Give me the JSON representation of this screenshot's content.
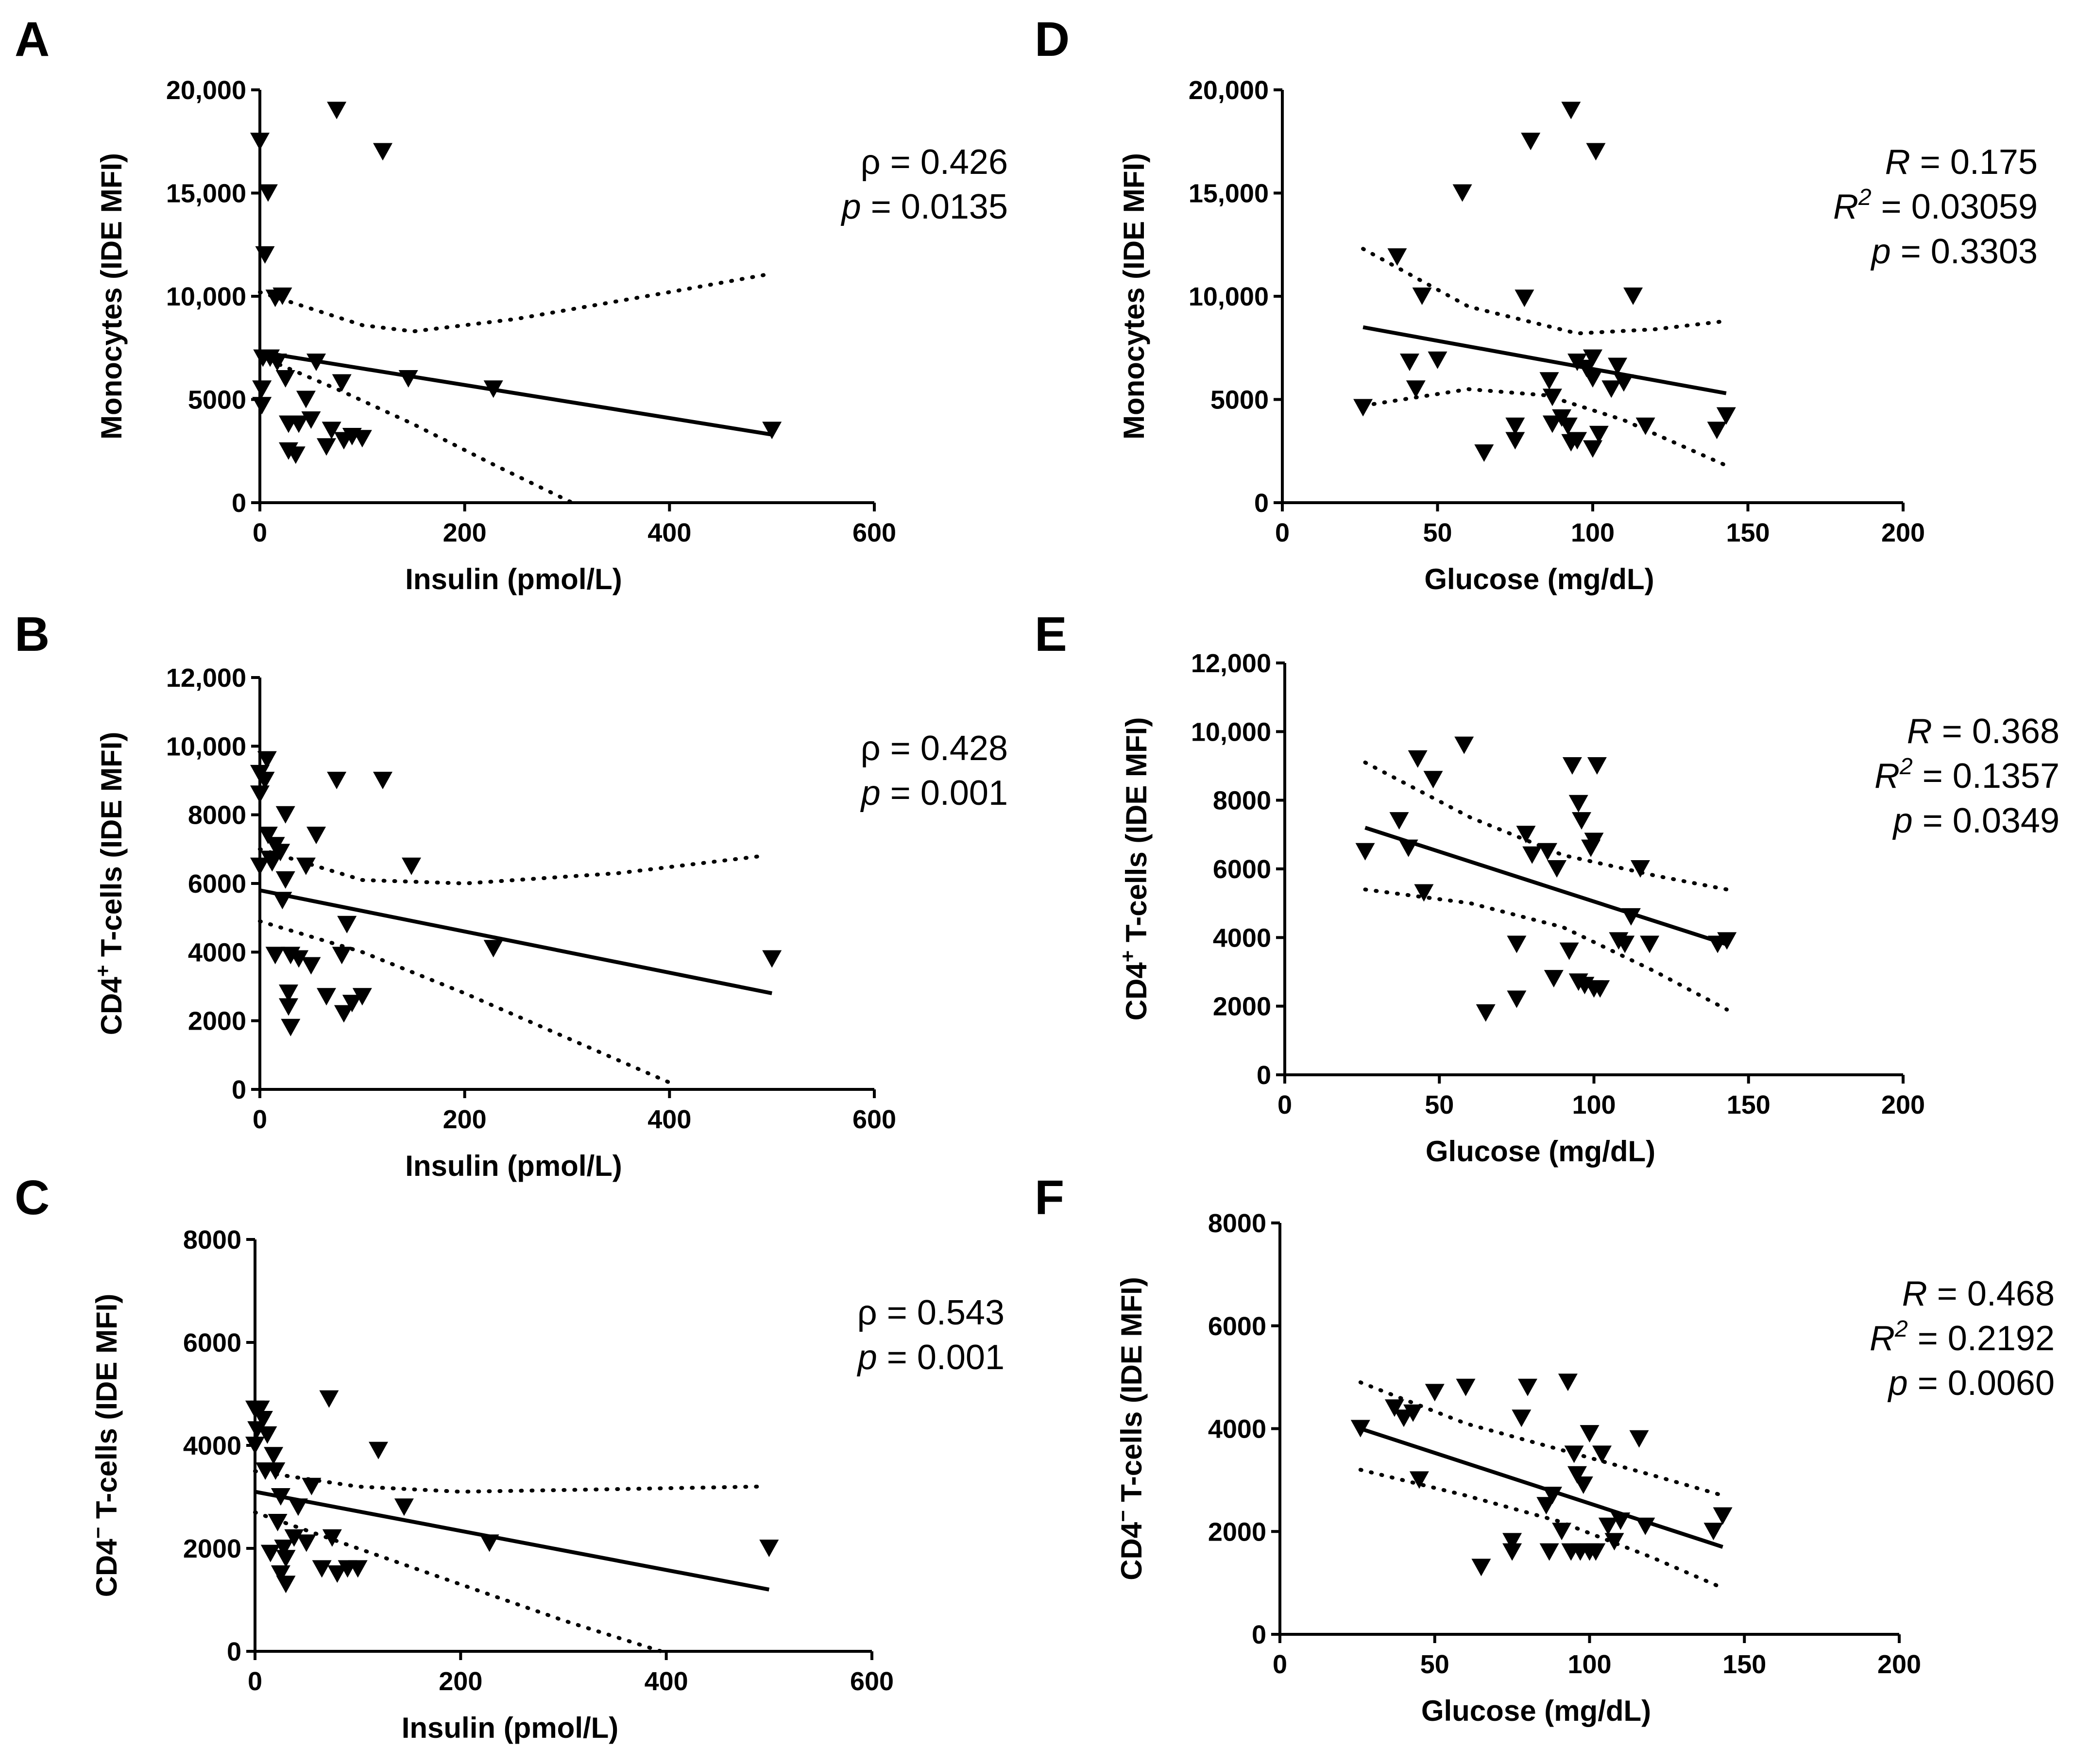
{
  "chart_data": [
    {
      "type": "scatter",
      "panel": "A",
      "xlabel": "Insulin (pmol/L)",
      "ylabel": "Monocytes (IDE MFI)",
      "xlim": [
        0,
        600
      ],
      "ylim": [
        0,
        20000
      ],
      "x_ticks": [
        0,
        200,
        400,
        600
      ],
      "x_tick_labels": [
        "0",
        "200",
        "400",
        "600"
      ],
      "y_ticks": [
        0,
        5000,
        10000,
        15000,
        20000
      ],
      "y_tick_labels": [
        "0",
        "5000",
        "10,000",
        "15,000",
        "20,000"
      ],
      "stats": [
        {
          "sym": "ρ",
          "rest": " = 0.426"
        },
        {
          "sym": "p",
          "rest": " = 0.0135"
        }
      ],
      "points": [
        [
          0,
          17500
        ],
        [
          2,
          4700
        ],
        [
          2,
          5500
        ],
        [
          3,
          7000
        ],
        [
          5,
          12000
        ],
        [
          8,
          15000
        ],
        [
          10,
          7000
        ],
        [
          15,
          9900
        ],
        [
          17,
          6800
        ],
        [
          22,
          10000
        ],
        [
          25,
          6000
        ],
        [
          28,
          3800
        ],
        [
          28,
          2500
        ],
        [
          35,
          2300
        ],
        [
          38,
          3800
        ],
        [
          45,
          5000
        ],
        [
          50,
          4000
        ],
        [
          55,
          6800
        ],
        [
          65,
          2700
        ],
        [
          70,
          3500
        ],
        [
          80,
          5800
        ],
        [
          82,
          3000
        ],
        [
          90,
          3200
        ],
        [
          100,
          3100
        ],
        [
          75,
          19000
        ],
        [
          120,
          17000
        ],
        [
          145,
          6000
        ],
        [
          228,
          5500
        ],
        [
          500,
          3500
        ]
      ],
      "fit": {
        "x1": 0,
        "y1": 7300,
        "x2": 500,
        "y2": 3300
      },
      "ci_upper": [
        [
          0,
          10200
        ],
        [
          100,
          8600
        ],
        [
          150,
          8300
        ],
        [
          250,
          8900
        ],
        [
          400,
          10200
        ],
        [
          500,
          11100
        ]
      ],
      "ci_lower": [
        [
          0,
          7100
        ],
        [
          80,
          5400
        ],
        [
          150,
          3800
        ],
        [
          230,
          1800
        ],
        [
          305,
          0
        ]
      ]
    },
    {
      "type": "scatter",
      "panel": "B",
      "xlabel": "Insulin (pmol/L)",
      "ylabel": "CD4+ T-cells (IDE MFI)",
      "ylabel_parts": {
        "pre": "CD4",
        "sup": "+",
        "post": " T-cells (IDE MFI)"
      },
      "xlim": [
        0,
        600
      ],
      "ylim": [
        0,
        12000
      ],
      "x_ticks": [
        0,
        200,
        400,
        600
      ],
      "x_tick_labels": [
        "0",
        "200",
        "400",
        "600"
      ],
      "y_ticks": [
        0,
        2000,
        4000,
        6000,
        8000,
        10000,
        12000
      ],
      "y_tick_labels": [
        "0",
        "2000",
        "4000",
        "6000",
        "8000",
        "10,000",
        "12,000"
      ],
      "stats": [
        {
          "sym": "ρ",
          "rest": " = 0.428"
        },
        {
          "sym": "p",
          "rest": " = 0.001"
        }
      ],
      "points": [
        [
          0,
          6500
        ],
        [
          0,
          8600
        ],
        [
          0,
          9200
        ],
        [
          5,
          9000
        ],
        [
          7,
          9600
        ],
        [
          8,
          7400
        ],
        [
          10,
          6700
        ],
        [
          12,
          6600
        ],
        [
          15,
          7100
        ],
        [
          15,
          3900
        ],
        [
          20,
          6900
        ],
        [
          22,
          5500
        ],
        [
          25,
          6100
        ],
        [
          25,
          8000
        ],
        [
          28,
          2800
        ],
        [
          28,
          2400
        ],
        [
          30,
          3900
        ],
        [
          30,
          1800
        ],
        [
          38,
          3800
        ],
        [
          45,
          6500
        ],
        [
          50,
          3600
        ],
        [
          55,
          7400
        ],
        [
          65,
          2700
        ],
        [
          75,
          9000
        ],
        [
          80,
          3900
        ],
        [
          82,
          2200
        ],
        [
          85,
          4800
        ],
        [
          90,
          2500
        ],
        [
          100,
          2700
        ],
        [
          120,
          9000
        ],
        [
          148,
          6500
        ],
        [
          228,
          4100
        ],
        [
          500,
          3800
        ]
      ],
      "fit": {
        "x1": 0,
        "y1": 5800,
        "x2": 500,
        "y2": 2800
      },
      "ci_upper": [
        [
          0,
          7000
        ],
        [
          100,
          6100
        ],
        [
          200,
          6000
        ],
        [
          350,
          6300
        ],
        [
          490,
          6800
        ]
      ],
      "ci_lower": [
        [
          0,
          4900
        ],
        [
          100,
          4000
        ],
        [
          200,
          2800
        ],
        [
          300,
          1500
        ],
        [
          400,
          200
        ]
      ]
    },
    {
      "type": "scatter",
      "panel": "C",
      "xlabel": "Insulin (pmol/L)",
      "ylabel": "CD4⁻ T-cells (IDE MFI)",
      "ylabel_parts": {
        "pre": "CD4",
        "sup": "−",
        "post": " T-cells (IDE MFI)"
      },
      "xlim": [
        0,
        600
      ],
      "ylim": [
        0,
        8000
      ],
      "x_ticks": [
        0,
        200,
        400,
        600
      ],
      "x_tick_labels": [
        "0",
        "200",
        "400",
        "600"
      ],
      "y_ticks": [
        0,
        2000,
        4000,
        6000,
        8000
      ],
      "y_tick_labels": [
        "0",
        "2000",
        "4000",
        "6000",
        "8000"
      ],
      "stats": [
        {
          "sym": "ρ",
          "rest": " = 0.543"
        },
        {
          "sym": "p",
          "rest": " = 0.001"
        }
      ],
      "points": [
        [
          0,
          4000
        ],
        [
          0,
          4700
        ],
        [
          2,
          4300
        ],
        [
          5,
          4700
        ],
        [
          8,
          4500
        ],
        [
          10,
          3500
        ],
        [
          12,
          4200
        ],
        [
          15,
          1900
        ],
        [
          18,
          3800
        ],
        [
          20,
          3500
        ],
        [
          22,
          2500
        ],
        [
          25,
          3000
        ],
        [
          25,
          1500
        ],
        [
          28,
          2000
        ],
        [
          30,
          1300
        ],
        [
          30,
          1800
        ],
        [
          38,
          2200
        ],
        [
          42,
          2800
        ],
        [
          50,
          2100
        ],
        [
          55,
          3200
        ],
        [
          65,
          1600
        ],
        [
          72,
          4900
        ],
        [
          75,
          2200
        ],
        [
          80,
          1500
        ],
        [
          90,
          1600
        ],
        [
          100,
          1600
        ],
        [
          120,
          3900
        ],
        [
          145,
          2800
        ],
        [
          228,
          2100
        ],
        [
          500,
          2000
        ]
      ],
      "fit": {
        "x1": 0,
        "y1": 3100,
        "x2": 500,
        "y2": 1200
      },
      "ci_upper": [
        [
          0,
          3500
        ],
        [
          100,
          3200
        ],
        [
          200,
          3100
        ],
        [
          350,
          3150
        ],
        [
          490,
          3200
        ]
      ],
      "ci_lower": [
        [
          0,
          2700
        ],
        [
          100,
          2000
        ],
        [
          200,
          1300
        ],
        [
          300,
          600
        ],
        [
          395,
          0
        ]
      ]
    },
    {
      "type": "scatter",
      "panel": "D",
      "xlabel": "Glucose (mg/dL)",
      "ylabel": "Monocytes (IDE MFI)",
      "xlim": [
        0,
        200
      ],
      "ylim": [
        0,
        20000
      ],
      "x_ticks": [
        0,
        50,
        100,
        150,
        200
      ],
      "x_tick_labels": [
        "0",
        "50",
        "100",
        "150",
        "200"
      ],
      "y_ticks": [
        0,
        5000,
        10000,
        15000,
        20000
      ],
      "y_tick_labels": [
        "0",
        "5000",
        "10,000",
        "15,000",
        "20,000"
      ],
      "stats": [
        {
          "sym": "R",
          "rest": " = 0.175"
        },
        {
          "sym": "R",
          "sup": "2",
          "rest": " = 0.03059"
        },
        {
          "sym": "p",
          "rest": " = 0.3303"
        }
      ],
      "points": [
        [
          26,
          4600
        ],
        [
          37,
          11900
        ],
        [
          41,
          6800
        ],
        [
          43,
          5500
        ],
        [
          45,
          10000
        ],
        [
          50,
          6900
        ],
        [
          58,
          15000
        ],
        [
          65,
          2400
        ],
        [
          75,
          3700
        ],
        [
          75,
          3000
        ],
        [
          78,
          9900
        ],
        [
          80,
          17500
        ],
        [
          86,
          5900
        ],
        [
          87,
          5100
        ],
        [
          87,
          3800
        ],
        [
          90,
          4100
        ],
        [
          92,
          3700
        ],
        [
          93,
          19000
        ],
        [
          93,
          2900
        ],
        [
          95,
          3000
        ],
        [
          95,
          6800
        ],
        [
          98,
          6500
        ],
        [
          100,
          7000
        ],
        [
          100,
          6000
        ],
        [
          100,
          2600
        ],
        [
          101,
          17000
        ],
        [
          102,
          3300
        ],
        [
          106,
          5500
        ],
        [
          108,
          6600
        ],
        [
          110,
          5800
        ],
        [
          113,
          10000
        ],
        [
          117,
          3700
        ],
        [
          140,
          3500
        ],
        [
          143,
          4200
        ]
      ],
      "fit": {
        "x1": 26,
        "y1": 8500,
        "x2": 143,
        "y2": 5300
      },
      "ci_upper": [
        [
          26,
          12300
        ],
        [
          60,
          9500
        ],
        [
          95,
          8200
        ],
        [
          120,
          8400
        ],
        [
          143,
          8800
        ]
      ],
      "ci_lower": [
        [
          26,
          4700
        ],
        [
          60,
          5500
        ],
        [
          85,
          5200
        ],
        [
          110,
          4000
        ],
        [
          143,
          1800
        ]
      ]
    },
    {
      "type": "scatter",
      "panel": "E",
      "xlabel": "Glucose (mg/dL)",
      "ylabel": "CD4+ T-cells (IDE MFI)",
      "ylabel_parts": {
        "pre": "CD4",
        "sup": "+",
        "post": " T-cells (IDE MFI)"
      },
      "xlim": [
        0,
        200
      ],
      "ylim": [
        0,
        12000
      ],
      "x_ticks": [
        0,
        50,
        100,
        150,
        200
      ],
      "x_tick_labels": [
        "0",
        "50",
        "100",
        "150",
        "200"
      ],
      "y_ticks": [
        0,
        2000,
        4000,
        6000,
        8000,
        10000,
        12000
      ],
      "y_tick_labels": [
        "0",
        "2000",
        "4000",
        "6000",
        "8000",
        "10,000",
        "12,000"
      ],
      "stats": [
        {
          "sym": "R",
          "rest": " = 0.368"
        },
        {
          "sym": "R",
          "sup": "2",
          "rest": " = 0.1357"
        },
        {
          "sym": "p",
          "rest": " = 0.0349"
        }
      ],
      "points": [
        [
          26,
          6500
        ],
        [
          37,
          7400
        ],
        [
          40,
          6600
        ],
        [
          43,
          9200
        ],
        [
          45,
          5300
        ],
        [
          48,
          8600
        ],
        [
          58,
          9600
        ],
        [
          65,
          1800
        ],
        [
          75,
          3800
        ],
        [
          75,
          2200
        ],
        [
          78,
          7000
        ],
        [
          80,
          6400
        ],
        [
          85,
          6500
        ],
        [
          87,
          2800
        ],
        [
          88,
          6000
        ],
        [
          92,
          3600
        ],
        [
          93,
          9000
        ],
        [
          95,
          7900
        ],
        [
          95,
          2700
        ],
        [
          96,
          7400
        ],
        [
          97,
          2600
        ],
        [
          99,
          6600
        ],
        [
          100,
          6800
        ],
        [
          100,
          2500
        ],
        [
          101,
          9000
        ],
        [
          102,
          2500
        ],
        [
          108,
          3900
        ],
        [
          110,
          3800
        ],
        [
          112,
          4600
        ],
        [
          115,
          6000
        ],
        [
          118,
          3800
        ],
        [
          140,
          3800
        ],
        [
          143,
          3900
        ]
      ],
      "fit": {
        "x1": 26,
        "y1": 7200,
        "x2": 143,
        "y2": 3800
      },
      "ci_upper": [
        [
          26,
          9100
        ],
        [
          60,
          7500
        ],
        [
          90,
          6400
        ],
        [
          120,
          5800
        ],
        [
          143,
          5400
        ]
      ],
      "ci_lower": [
        [
          26,
          5400
        ],
        [
          60,
          5000
        ],
        [
          90,
          4300
        ],
        [
          120,
          3000
        ],
        [
          143,
          1900
        ]
      ]
    },
    {
      "type": "scatter",
      "panel": "F",
      "xlabel": "Glucose (mg/dL)",
      "ylabel": "CD4⁻ T-cells (IDE MFI)",
      "ylabel_parts": {
        "pre": "CD4",
        "sup": "−",
        "post": " T-cells (IDE MFI)"
      },
      "xlim": [
        0,
        200
      ],
      "ylim": [
        0,
        8000
      ],
      "x_ticks": [
        0,
        50,
        100,
        150,
        200
      ],
      "x_tick_labels": [
        "0",
        "50",
        "100",
        "150",
        "200"
      ],
      "y_ticks": [
        0,
        2000,
        4000,
        6000,
        8000
      ],
      "y_tick_labels": [
        "0",
        "2000",
        "4000",
        "6000",
        "8000"
      ],
      "stats": [
        {
          "sym": "R",
          "rest": " = 0.468"
        },
        {
          "sym": "R",
          "sup": "2",
          "rest": " = 0.2192"
        },
        {
          "sym": "p",
          "rest": " = 0.0060"
        }
      ],
      "points": [
        [
          26,
          4000
        ],
        [
          37,
          4400
        ],
        [
          40,
          4200
        ],
        [
          43,
          4300
        ],
        [
          45,
          3000
        ],
        [
          50,
          4700
        ],
        [
          60,
          4800
        ],
        [
          65,
          1300
        ],
        [
          75,
          1800
        ],
        [
          75,
          1600
        ],
        [
          78,
          4200
        ],
        [
          80,
          4800
        ],
        [
          86,
          2500
        ],
        [
          87,
          1600
        ],
        [
          88,
          2700
        ],
        [
          91,
          2000
        ],
        [
          93,
          4900
        ],
        [
          94,
          1600
        ],
        [
          95,
          3500
        ],
        [
          96,
          3100
        ],
        [
          97,
          1600
        ],
        [
          98,
          2900
        ],
        [
          100,
          1600
        ],
        [
          100,
          3900
        ],
        [
          102,
          1600
        ],
        [
          104,
          3500
        ],
        [
          106,
          2100
        ],
        [
          108,
          1800
        ],
        [
          110,
          2200
        ],
        [
          116,
          3800
        ],
        [
          118,
          2100
        ],
        [
          140,
          2000
        ],
        [
          143,
          2300
        ]
      ],
      "fit": {
        "x1": 26,
        "y1": 4000,
        "x2": 143,
        "y2": 1700
      },
      "ci_upper": [
        [
          26,
          4900
        ],
        [
          60,
          4100
        ],
        [
          90,
          3600
        ],
        [
          120,
          3100
        ],
        [
          143,
          2700
        ]
      ],
      "ci_lower": [
        [
          26,
          3200
        ],
        [
          60,
          2700
        ],
        [
          90,
          2200
        ],
        [
          120,
          1500
        ],
        [
          143,
          900
        ]
      ]
    }
  ]
}
